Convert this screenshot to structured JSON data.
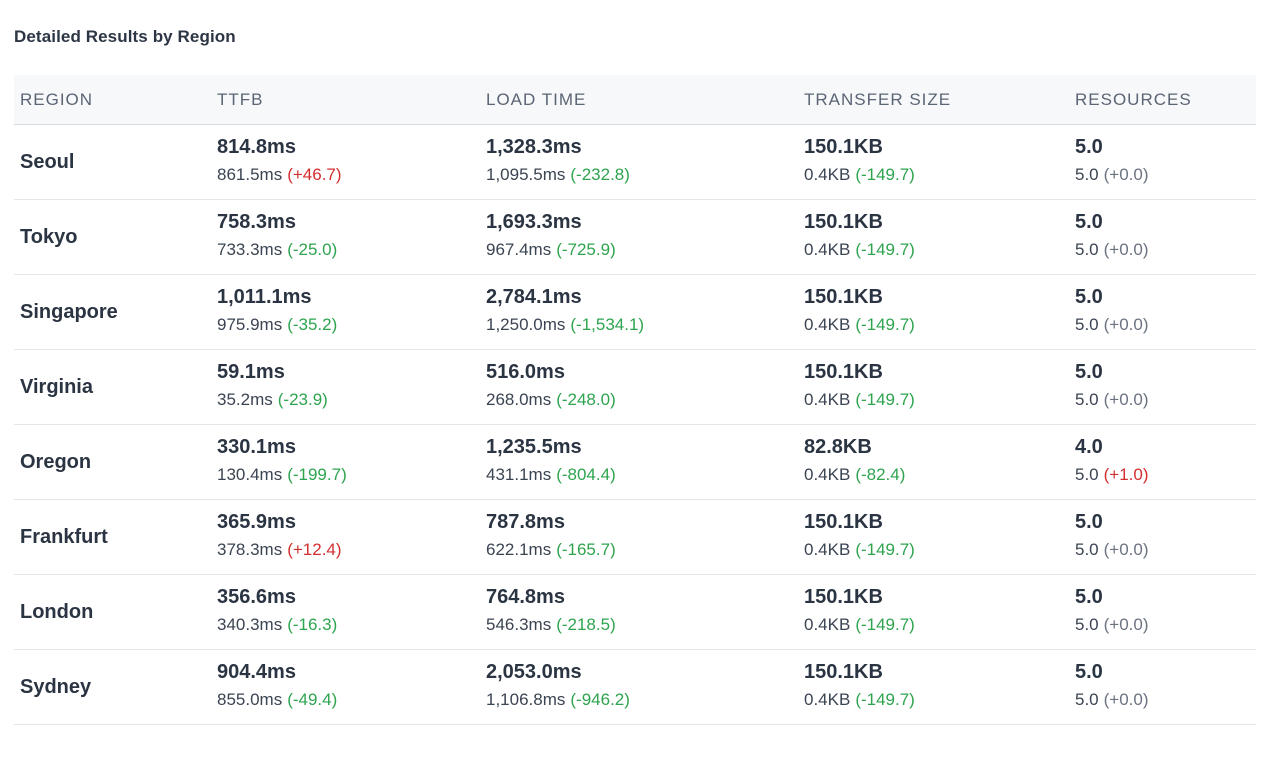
{
  "title": "Detailed Results by Region",
  "columns": {
    "region": "REGION",
    "ttfb": "TTFB",
    "load_time": "LOAD TIME",
    "transfer_size": "TRANSFER SIZE",
    "resources": "RESOURCES"
  },
  "rows": [
    {
      "region": "Seoul",
      "ttfb": {
        "value": "814.8ms",
        "compare": "861.5ms",
        "delta": "(+46.7)",
        "trend": "up"
      },
      "load_time": {
        "value": "1,328.3ms",
        "compare": "1,095.5ms",
        "delta": "(-232.8)",
        "trend": "down"
      },
      "transfer_size": {
        "value": "150.1KB",
        "compare": "0.4KB",
        "delta": "(-149.7)",
        "trend": "down"
      },
      "resources": {
        "value": "5.0",
        "compare": "5.0",
        "delta": "(+0.0)",
        "trend": "flat"
      }
    },
    {
      "region": "Tokyo",
      "ttfb": {
        "value": "758.3ms",
        "compare": "733.3ms",
        "delta": "(-25.0)",
        "trend": "down"
      },
      "load_time": {
        "value": "1,693.3ms",
        "compare": "967.4ms",
        "delta": "(-725.9)",
        "trend": "down"
      },
      "transfer_size": {
        "value": "150.1KB",
        "compare": "0.4KB",
        "delta": "(-149.7)",
        "trend": "down"
      },
      "resources": {
        "value": "5.0",
        "compare": "5.0",
        "delta": "(+0.0)",
        "trend": "flat"
      }
    },
    {
      "region": "Singapore",
      "ttfb": {
        "value": "1,011.1ms",
        "compare": "975.9ms",
        "delta": "(-35.2)",
        "trend": "down"
      },
      "load_time": {
        "value": "2,784.1ms",
        "compare": "1,250.0ms",
        "delta": "(-1,534.1)",
        "trend": "down"
      },
      "transfer_size": {
        "value": "150.1KB",
        "compare": "0.4KB",
        "delta": "(-149.7)",
        "trend": "down"
      },
      "resources": {
        "value": "5.0",
        "compare": "5.0",
        "delta": "(+0.0)",
        "trend": "flat"
      }
    },
    {
      "region": "Virginia",
      "ttfb": {
        "value": "59.1ms",
        "compare": "35.2ms",
        "delta": "(-23.9)",
        "trend": "down"
      },
      "load_time": {
        "value": "516.0ms",
        "compare": "268.0ms",
        "delta": "(-248.0)",
        "trend": "down"
      },
      "transfer_size": {
        "value": "150.1KB",
        "compare": "0.4KB",
        "delta": "(-149.7)",
        "trend": "down"
      },
      "resources": {
        "value": "5.0",
        "compare": "5.0",
        "delta": "(+0.0)",
        "trend": "flat"
      }
    },
    {
      "region": "Oregon",
      "ttfb": {
        "value": "330.1ms",
        "compare": "130.4ms",
        "delta": "(-199.7)",
        "trend": "down"
      },
      "load_time": {
        "value": "1,235.5ms",
        "compare": "431.1ms",
        "delta": "(-804.4)",
        "trend": "down"
      },
      "transfer_size": {
        "value": "82.8KB",
        "compare": "0.4KB",
        "delta": "(-82.4)",
        "trend": "down"
      },
      "resources": {
        "value": "4.0",
        "compare": "5.0",
        "delta": "(+1.0)",
        "trend": "up"
      }
    },
    {
      "region": "Frankfurt",
      "ttfb": {
        "value": "365.9ms",
        "compare": "378.3ms",
        "delta": "(+12.4)",
        "trend": "up"
      },
      "load_time": {
        "value": "787.8ms",
        "compare": "622.1ms",
        "delta": "(-165.7)",
        "trend": "down"
      },
      "transfer_size": {
        "value": "150.1KB",
        "compare": "0.4KB",
        "delta": "(-149.7)",
        "trend": "down"
      },
      "resources": {
        "value": "5.0",
        "compare": "5.0",
        "delta": "(+0.0)",
        "trend": "flat"
      }
    },
    {
      "region": "London",
      "ttfb": {
        "value": "356.6ms",
        "compare": "340.3ms",
        "delta": "(-16.3)",
        "trend": "down"
      },
      "load_time": {
        "value": "764.8ms",
        "compare": "546.3ms",
        "delta": "(-218.5)",
        "trend": "down"
      },
      "transfer_size": {
        "value": "150.1KB",
        "compare": "0.4KB",
        "delta": "(-149.7)",
        "trend": "down"
      },
      "resources": {
        "value": "5.0",
        "compare": "5.0",
        "delta": "(+0.0)",
        "trend": "flat"
      }
    },
    {
      "region": "Sydney",
      "ttfb": {
        "value": "904.4ms",
        "compare": "855.0ms",
        "delta": "(-49.4)",
        "trend": "down"
      },
      "load_time": {
        "value": "2,053.0ms",
        "compare": "1,106.8ms",
        "delta": "(-946.2)",
        "trend": "down"
      },
      "transfer_size": {
        "value": "150.1KB",
        "compare": "0.4KB",
        "delta": "(-149.7)",
        "trend": "down"
      },
      "resources": {
        "value": "5.0",
        "compare": "5.0",
        "delta": "(+0.0)",
        "trend": "flat"
      }
    }
  ],
  "colors": {
    "increase": "#d32f2f",
    "decrease": "#2ea44f",
    "neutral": "#6b7280"
  }
}
